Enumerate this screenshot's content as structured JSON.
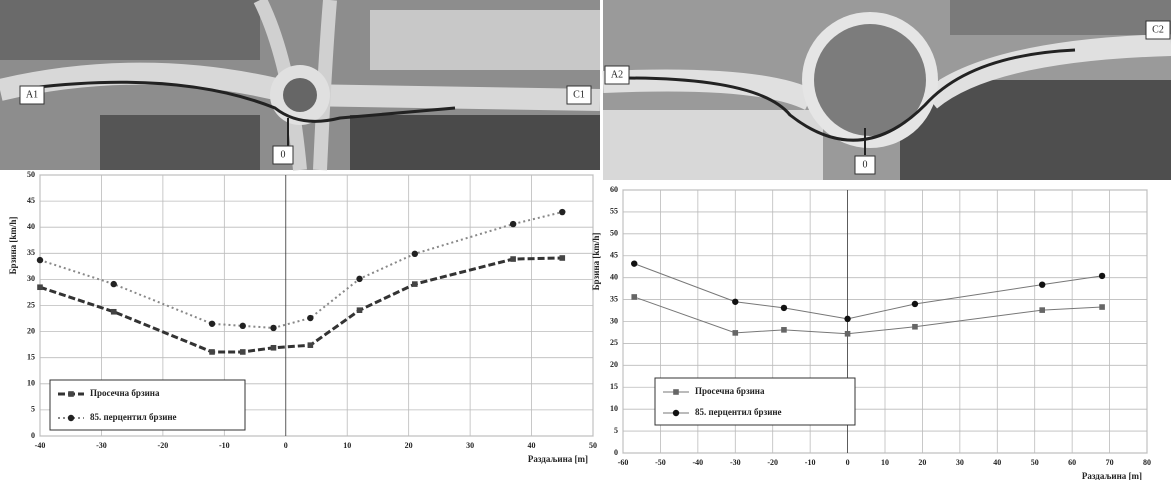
{
  "chart_data": [
    {
      "type": "line",
      "annotations": [
        "A1",
        "C1",
        "0"
      ],
      "xlabel": "Раздаљина [m]",
      "ylabel": "Брзина [km/h]",
      "x": [
        -40,
        -28,
        -12,
        -7,
        -2,
        4,
        12,
        21,
        37,
        45
      ],
      "series": [
        {
          "name": "Просечна брзина",
          "color": "#333333",
          "values": [
            28.5,
            23.8,
            16.1,
            16.1,
            16.9,
            17.4,
            24.1,
            29.1,
            33.9,
            34.1
          ]
        },
        {
          "name": "85. перцентил брзине",
          "color": "#888888",
          "values": [
            33.7,
            29.1,
            21.5,
            21.1,
            20.7,
            22.6,
            30.1,
            34.9,
            40.6,
            42.9
          ]
        }
      ],
      "xlim": [
        -40,
        50
      ],
      "ylim": [
        0,
        50
      ],
      "xticks": [
        -40,
        -30,
        -20,
        -10,
        0,
        10,
        20,
        30,
        40,
        50
      ],
      "yticks": [
        0,
        5,
        10,
        15,
        20,
        25,
        30,
        35,
        40,
        45,
        50
      ],
      "grid": true,
      "legend": "lower left"
    },
    {
      "type": "line",
      "annotations": [
        "A2",
        "C2",
        "0"
      ],
      "xlabel": "Раздаљина [m]",
      "ylabel": "Брзина [km/h]",
      "x": [
        -57,
        -30,
        -17,
        0,
        18,
        52,
        68
      ],
      "series": [
        {
          "name": "Просечна брзина",
          "color": "#777777",
          "values": [
            35.6,
            27.4,
            28.1,
            27.2,
            28.8,
            32.6,
            33.3
          ]
        },
        {
          "name": "85. перцентил брзине",
          "color": "#777777",
          "values": [
            43.2,
            34.5,
            33.1,
            30.6,
            34,
            38.4,
            40.4
          ]
        }
      ],
      "xlim": [
        -60,
        80
      ],
      "ylim": [
        0,
        60
      ],
      "xticks": [
        -60,
        -50,
        -40,
        -30,
        -20,
        -10,
        0,
        10,
        20,
        30,
        40,
        50,
        60,
        70,
        80
      ],
      "yticks": [
        0,
        5,
        10,
        15,
        20,
        25,
        30,
        35,
        40,
        45,
        50,
        55,
        60
      ],
      "grid": true,
      "legend": "lower left"
    }
  ]
}
